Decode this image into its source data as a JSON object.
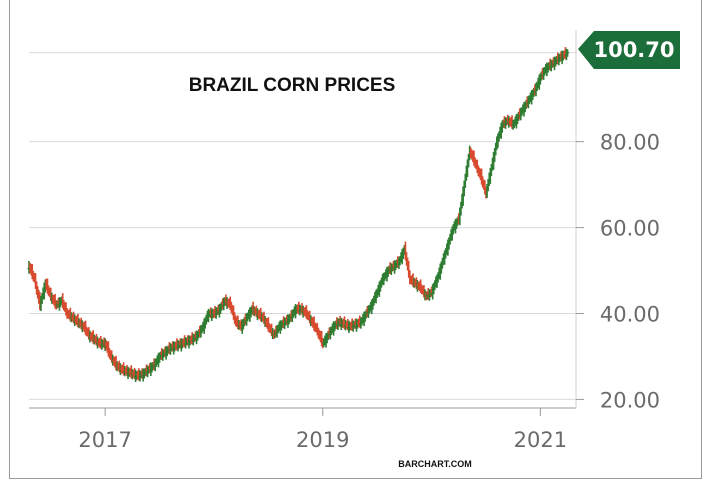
{
  "chart_data": {
    "type": "ohlc",
    "title": "BRAZIL CORN PRICES",
    "source_label": "BARCHART.COM",
    "last_value_label": "100.70",
    "last_value": 100.7,
    "ylim": [
      18,
      106
    ],
    "y_ticks": [
      {
        "value": 20,
        "label": "20.00"
      },
      {
        "value": 40,
        "label": "40.00"
      },
      {
        "value": 60,
        "label": "60.00"
      },
      {
        "value": 80,
        "label": "80.00"
      }
    ],
    "x_range": [
      2016.3,
      2021.3
    ],
    "x_ticks": [
      {
        "value": 2017.0,
        "label": "2017"
      },
      {
        "value": 2019.0,
        "label": "2019"
      },
      {
        "value": 2021.0,
        "label": "2021"
      }
    ],
    "grid": true,
    "colors": {
      "up": "#2e7d32",
      "down": "#d84a2f",
      "grid": "#d9d9d9",
      "axis": "#9a9a9a",
      "badge": "#1b6e3a"
    },
    "series": [
      {
        "values": [
          [
            2016.3,
            51
          ],
          [
            2016.35,
            48
          ],
          [
            2016.4,
            42
          ],
          [
            2016.45,
            47
          ],
          [
            2016.5,
            44
          ],
          [
            2016.55,
            42
          ],
          [
            2016.6,
            43
          ],
          [
            2016.65,
            40
          ],
          [
            2016.7,
            39
          ],
          [
            2016.75,
            38
          ],
          [
            2016.8,
            37
          ],
          [
            2016.85,
            35
          ],
          [
            2016.9,
            34
          ],
          [
            2016.95,
            33
          ],
          [
            2017.0,
            33
          ],
          [
            2017.05,
            30
          ],
          [
            2017.1,
            28
          ],
          [
            2017.15,
            27
          ],
          [
            2017.2,
            26.5
          ],
          [
            2017.25,
            26
          ],
          [
            2017.3,
            25.5
          ],
          [
            2017.35,
            26
          ],
          [
            2017.4,
            27
          ],
          [
            2017.45,
            28
          ],
          [
            2017.5,
            30
          ],
          [
            2017.55,
            31
          ],
          [
            2017.6,
            32
          ],
          [
            2017.65,
            32.5
          ],
          [
            2017.7,
            33
          ],
          [
            2017.75,
            33.5
          ],
          [
            2017.8,
            34
          ],
          [
            2017.85,
            35
          ],
          [
            2017.9,
            37
          ],
          [
            2017.95,
            40
          ],
          [
            2018.0,
            40
          ],
          [
            2018.05,
            41
          ],
          [
            2018.1,
            43
          ],
          [
            2018.15,
            42
          ],
          [
            2018.2,
            38
          ],
          [
            2018.25,
            37
          ],
          [
            2018.3,
            39
          ],
          [
            2018.35,
            41
          ],
          [
            2018.4,
            40
          ],
          [
            2018.45,
            39
          ],
          [
            2018.5,
            37
          ],
          [
            2018.55,
            35
          ],
          [
            2018.6,
            37
          ],
          [
            2018.65,
            38
          ],
          [
            2018.7,
            39
          ],
          [
            2018.75,
            41
          ],
          [
            2018.8,
            41
          ],
          [
            2018.85,
            40
          ],
          [
            2018.9,
            38
          ],
          [
            2018.95,
            36
          ],
          [
            2019.0,
            33
          ],
          [
            2019.05,
            35
          ],
          [
            2019.1,
            37
          ],
          [
            2019.15,
            38
          ],
          [
            2019.2,
            37.5
          ],
          [
            2019.25,
            37
          ],
          [
            2019.3,
            37.5
          ],
          [
            2019.35,
            38
          ],
          [
            2019.4,
            40
          ],
          [
            2019.45,
            42
          ],
          [
            2019.5,
            45
          ],
          [
            2019.55,
            48
          ],
          [
            2019.6,
            50
          ],
          [
            2019.65,
            51
          ],
          [
            2019.7,
            52
          ],
          [
            2019.75,
            55
          ],
          [
            2019.8,
            48
          ],
          [
            2019.85,
            47
          ],
          [
            2019.9,
            46
          ],
          [
            2019.95,
            44
          ],
          [
            2020.0,
            45
          ],
          [
            2020.05,
            48
          ],
          [
            2020.1,
            52
          ],
          [
            2020.15,
            56
          ],
          [
            2020.2,
            60
          ],
          [
            2020.25,
            62
          ],
          [
            2020.3,
            70
          ],
          [
            2020.35,
            78
          ],
          [
            2020.4,
            75
          ],
          [
            2020.45,
            72
          ],
          [
            2020.5,
            68
          ],
          [
            2020.55,
            74
          ],
          [
            2020.6,
            80
          ],
          [
            2020.65,
            84
          ],
          [
            2020.7,
            85
          ],
          [
            2020.75,
            84
          ],
          [
            2020.8,
            86
          ],
          [
            2020.85,
            88
          ],
          [
            2020.9,
            90
          ],
          [
            2020.95,
            92
          ],
          [
            2021.0,
            95
          ],
          [
            2021.05,
            97
          ],
          [
            2021.1,
            98
          ],
          [
            2021.15,
            99
          ],
          [
            2021.2,
            100
          ],
          [
            2021.25,
            100.7
          ]
        ]
      }
    ]
  }
}
